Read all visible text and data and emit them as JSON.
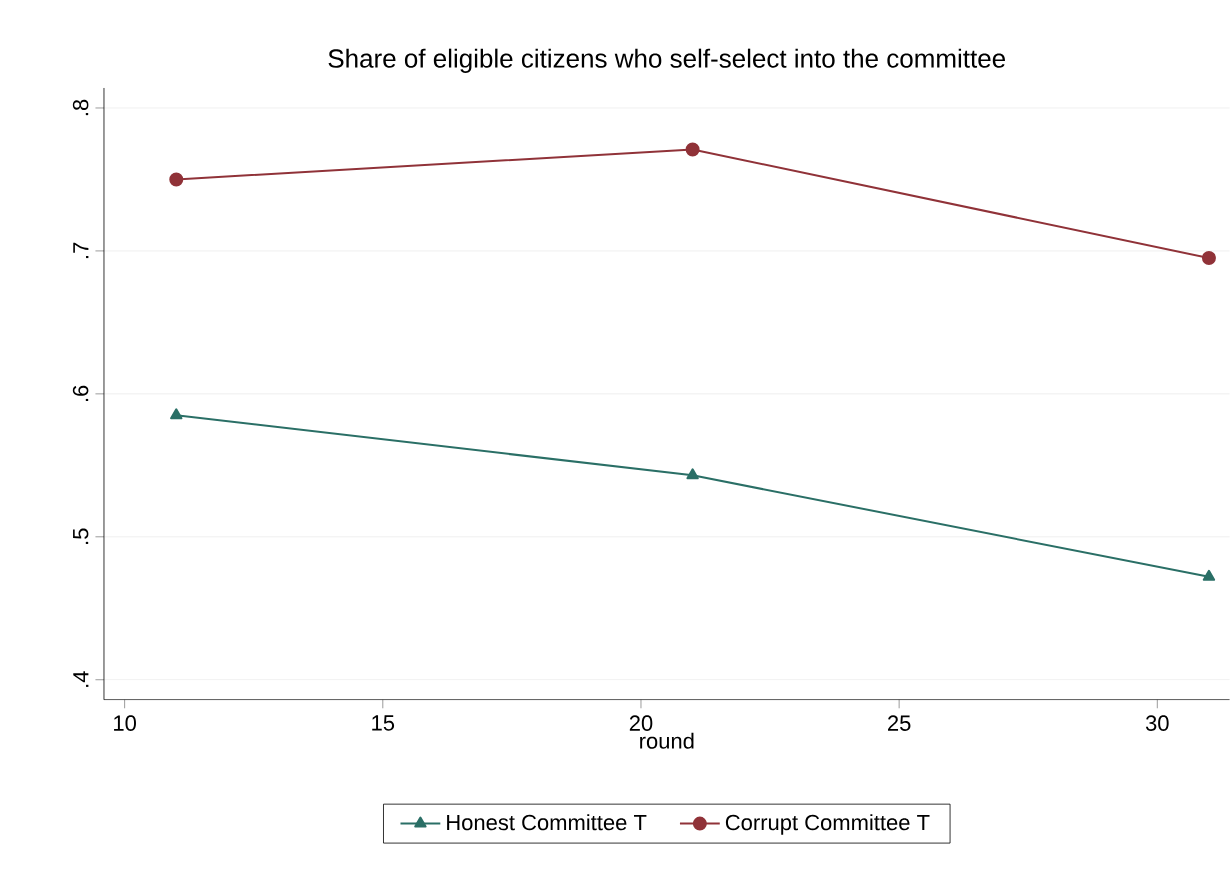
{
  "chart_data": {
    "type": "line",
    "title": "Share of eligible citizens who self-select into the committee",
    "xlabel": "round",
    "x": [
      11,
      21,
      31
    ],
    "series": [
      {
        "name": "Honest Committee T",
        "color": "#2a6f66",
        "marker": "triangle",
        "values": [
          0.585,
          0.543,
          0.472
        ]
      },
      {
        "name": "Corrupt Committee T",
        "color": "#903238",
        "marker": "circle",
        "values": [
          0.75,
          0.771,
          0.695
        ]
      }
    ],
    "xlim": [
      9.6,
      31.4
    ],
    "xticks": [
      10,
      15,
      20,
      25,
      30
    ],
    "ylim": [
      0.386,
      0.814
    ],
    "yticks": [
      {
        "value": 0.4,
        "label": ".4"
      },
      {
        "value": 0.5,
        "label": ".5"
      },
      {
        "value": 0.6,
        "label": ".6"
      },
      {
        "value": 0.7,
        "label": ".7"
      },
      {
        "value": 0.8,
        "label": ".8"
      }
    ],
    "grid": "y",
    "legend": "bottom",
    "line_style": "solid"
  }
}
